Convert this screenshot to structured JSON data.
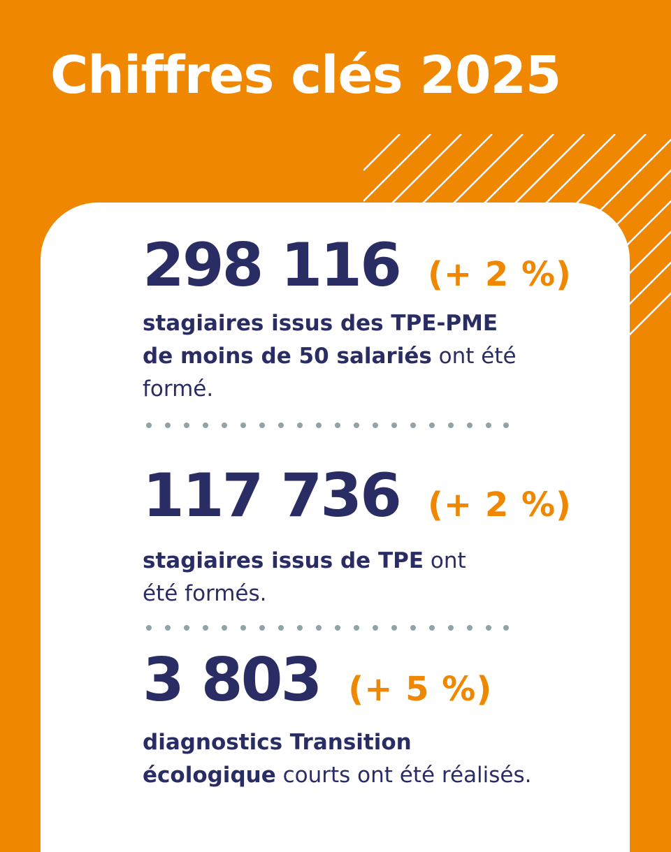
{
  "header": {
    "title": "Chiffres clés 2025"
  },
  "colors": {
    "background": "#ef8700",
    "card": "#ffffff",
    "number": "#2a2c64",
    "change": "#ef8700",
    "dots": "#8fa3aa"
  },
  "stats": [
    {
      "number": "298 116",
      "change": "(+ 2 %)",
      "desc_bold": "stagiaires issus des TPE-PME de moins de 50 salariés",
      "desc_rest": " ont été formé."
    },
    {
      "number": "117 736",
      "change": "(+ 2 %)",
      "desc_bold": "stagiaires issus de TPE",
      "desc_rest": " ont été formés."
    },
    {
      "number": "3 803",
      "change": "(+ 5 %)",
      "desc_bold": "diagnostics Transition écologique",
      "desc_rest": " courts ont été réalisés."
    }
  ]
}
